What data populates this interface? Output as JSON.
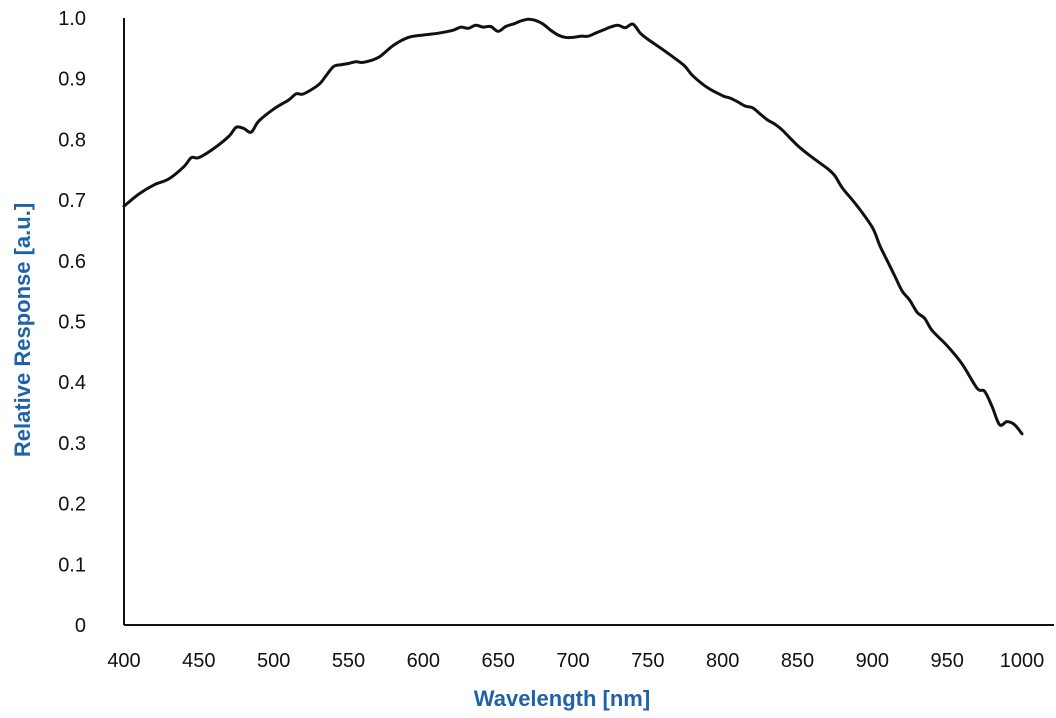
{
  "colors": {
    "axis_title": "#1f63a6",
    "line": "#111111"
  },
  "chart_data": {
    "type": "line",
    "title": "",
    "xlabel": "Wavelength [nm]",
    "ylabel": "Relative Response [a.u.]",
    "xlim": [
      400,
      1000
    ],
    "ylim": [
      0,
      1.0
    ],
    "x_ticks": [
      400,
      450,
      500,
      550,
      600,
      650,
      700,
      750,
      800,
      850,
      900,
      950,
      1000
    ],
    "y_ticks": [
      0,
      0.1,
      0.2,
      0.3,
      0.4,
      0.5,
      0.6,
      0.7,
      0.8,
      0.9,
      1.0
    ],
    "x_tick_labels": [
      "400",
      "450",
      "500",
      "550",
      "600",
      "650",
      "700",
      "750",
      "800",
      "850",
      "900",
      "950",
      "1000"
    ],
    "y_tick_labels": [
      "0",
      "0.1",
      "0.2",
      "0.3",
      "0.4",
      "0.5",
      "0.6",
      "0.7",
      "0.8",
      "0.9",
      "1.0"
    ],
    "grid": false,
    "legend": "none",
    "series": [
      {
        "x": [
          400,
          410,
          420,
          430,
          440,
          445,
          450,
          460,
          470,
          475,
          480,
          485,
          490,
          500,
          510,
          515,
          520,
          530,
          535,
          540,
          545,
          550,
          555,
          560,
          570,
          580,
          590,
          600,
          610,
          620,
          625,
          630,
          635,
          640,
          645,
          650,
          655,
          660,
          665,
          670,
          675,
          680,
          685,
          690,
          695,
          700,
          705,
          710,
          715,
          720,
          725,
          730,
          735,
          740,
          745,
          750,
          760,
          770,
          775,
          780,
          790,
          800,
          805,
          810,
          815,
          820,
          825,
          830,
          835,
          840,
          850,
          860,
          870,
          875,
          880,
          890,
          900,
          905,
          910,
          915,
          920,
          925,
          930,
          935,
          940,
          950,
          960,
          970,
          975,
          980,
          985,
          990,
          995,
          1000
        ],
        "y": [
          0.69,
          0.71,
          0.725,
          0.735,
          0.755,
          0.77,
          0.77,
          0.785,
          0.805,
          0.82,
          0.818,
          0.812,
          0.83,
          0.85,
          0.865,
          0.875,
          0.875,
          0.89,
          0.905,
          0.92,
          0.923,
          0.925,
          0.928,
          0.927,
          0.935,
          0.955,
          0.968,
          0.972,
          0.975,
          0.98,
          0.985,
          0.983,
          0.988,
          0.985,
          0.986,
          0.978,
          0.986,
          0.99,
          0.995,
          0.998,
          0.996,
          0.99,
          0.98,
          0.972,
          0.968,
          0.968,
          0.97,
          0.97,
          0.975,
          0.98,
          0.985,
          0.988,
          0.984,
          0.99,
          0.975,
          0.965,
          0.948,
          0.93,
          0.92,
          0.905,
          0.885,
          0.872,
          0.868,
          0.862,
          0.855,
          0.852,
          0.842,
          0.832,
          0.825,
          0.815,
          0.79,
          0.77,
          0.752,
          0.74,
          0.72,
          0.69,
          0.655,
          0.625,
          0.6,
          0.575,
          0.55,
          0.535,
          0.515,
          0.505,
          0.485,
          0.46,
          0.43,
          0.39,
          0.385,
          0.36,
          0.33,
          0.335,
          0.33,
          0.315
        ]
      }
    ]
  }
}
